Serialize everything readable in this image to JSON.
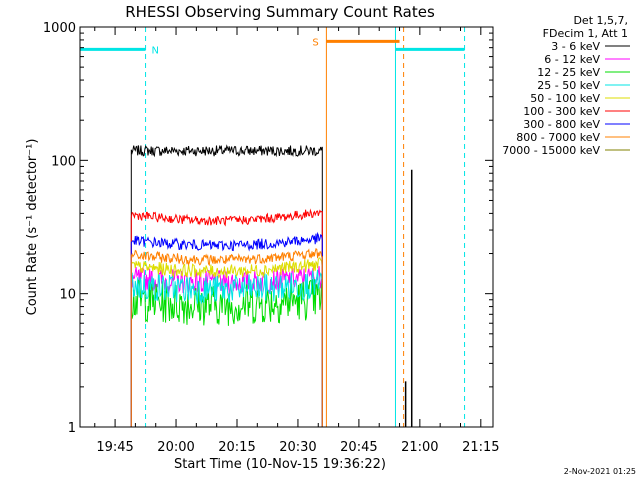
{
  "chart_data": {
    "type": "line",
    "title": "RHESSI Observing Summary Count Rates",
    "xlabel": "Start Time (10-Nov-15 19:36:22)",
    "ylabel": "Count Rate (s⁻¹ detector⁻¹)",
    "y_scale": "log",
    "ylim": [
      1,
      1000
    ],
    "xlim": [
      "19:36:22",
      "21:18:00"
    ],
    "y_ticks": [
      "1",
      "10",
      "100",
      "1000"
    ],
    "x_ticks": [
      "19:45",
      "20:00",
      "20:15",
      "20:30",
      "20:45",
      "21:00",
      "21:15"
    ],
    "grid": false,
    "legend_position": "top-right",
    "legend_header": [
      "Det 1,5,7,",
      "FDecim 1, Att 1"
    ],
    "data_window": [
      "19:49:00",
      "20:36:00"
    ],
    "series": [
      {
        "name": "3 - 6 keV",
        "color": "#000000",
        "mean": 118,
        "noise": 0.04,
        "x_start": "19:49",
        "x_end": "20:36",
        "trend": "flat",
        "trend_amp": 0
      },
      {
        "name": "6 - 12 keV",
        "color": "#ff00ff",
        "mean": 13,
        "noise": 0.09,
        "x_start": "19:49",
        "x_end": "20:36",
        "trend": "dip",
        "trend_amp": 0.08
      },
      {
        "name": "12 - 25 keV",
        "color": "#00dd00",
        "mean": 9,
        "noise": 0.16,
        "x_start": "19:49",
        "x_end": "20:36",
        "trend": "dip",
        "trend_amp": 0.1
      },
      {
        "name": "25 - 50 keV",
        "color": "#00e5e5",
        "mean": 11.5,
        "noise": 0.11,
        "x_start": "19:49",
        "x_end": "20:36",
        "trend": "dip",
        "trend_amp": 0.08
      },
      {
        "name": "50 - 100 keV",
        "color": "#dddd00",
        "mean": 16,
        "noise": 0.05,
        "x_start": "19:49",
        "x_end": "20:36",
        "trend": "dip",
        "trend_amp": 0.1
      },
      {
        "name": "100 - 300 keV",
        "color": "#ff0000",
        "mean": 39,
        "noise": 0.035,
        "x_start": "19:49",
        "x_end": "20:36",
        "trend": "dip",
        "trend_amp": 0.12
      },
      {
        "name": "300 - 800 keV",
        "color": "#0000ff",
        "mean": 25,
        "noise": 0.04,
        "x_start": "19:49",
        "x_end": "20:36",
        "trend": "dip",
        "trend_amp": 0.1
      },
      {
        "name": "800 - 7000 keV",
        "color": "#ff8000",
        "mean": 19.5,
        "noise": 0.04,
        "x_start": "19:49",
        "x_end": "20:36",
        "trend": "dip",
        "trend_amp": 0.1
      },
      {
        "name": "7000 - 15000 keV",
        "color": "#808000",
        "mean": 1,
        "noise": 0,
        "x_start": "19:49",
        "x_end": "20:36",
        "trend": "flat",
        "trend_amp": 0
      }
    ],
    "segments": [
      {
        "label": "",
        "color": "#00e5e5",
        "x_start": "19:36:22",
        "x_end": "19:52:30",
        "y": 680
      },
      {
        "label": "N",
        "color": "#00e5e5",
        "x_start": "19:52:30",
        "x_end": "19:52:30",
        "y": 680
      },
      {
        "label": "S",
        "color": "#ff8000",
        "x_start": "20:37:00",
        "x_end": "20:55:00",
        "y": 780
      },
      {
        "label": "",
        "color": "#00e5e5",
        "x_start": "20:54:00",
        "x_end": "21:11:00",
        "y": 680
      }
    ],
    "vertical_lines": [
      {
        "x": "19:36:22",
        "color": "#00e5e5",
        "style": "solid"
      },
      {
        "x": "19:52:30",
        "color": "#00e5e5",
        "style": "dashed"
      },
      {
        "x": "20:37:00",
        "color": "#ff8000",
        "style": "solid"
      },
      {
        "x": "20:54:00",
        "color": "#00e5e5",
        "style": "solid"
      },
      {
        "x": "20:56:00",
        "color": "#ff8000",
        "style": "dashed"
      },
      {
        "x": "21:11:00",
        "color": "#00e5e5",
        "style": "dashed"
      }
    ],
    "spikes": [
      {
        "x": "20:58:00",
        "y": 85,
        "color": "#000000"
      },
      {
        "x": "20:56:30",
        "y": 2.2,
        "color": "#000000"
      }
    ],
    "footer_date": "2-Nov-2021 01:25"
  }
}
